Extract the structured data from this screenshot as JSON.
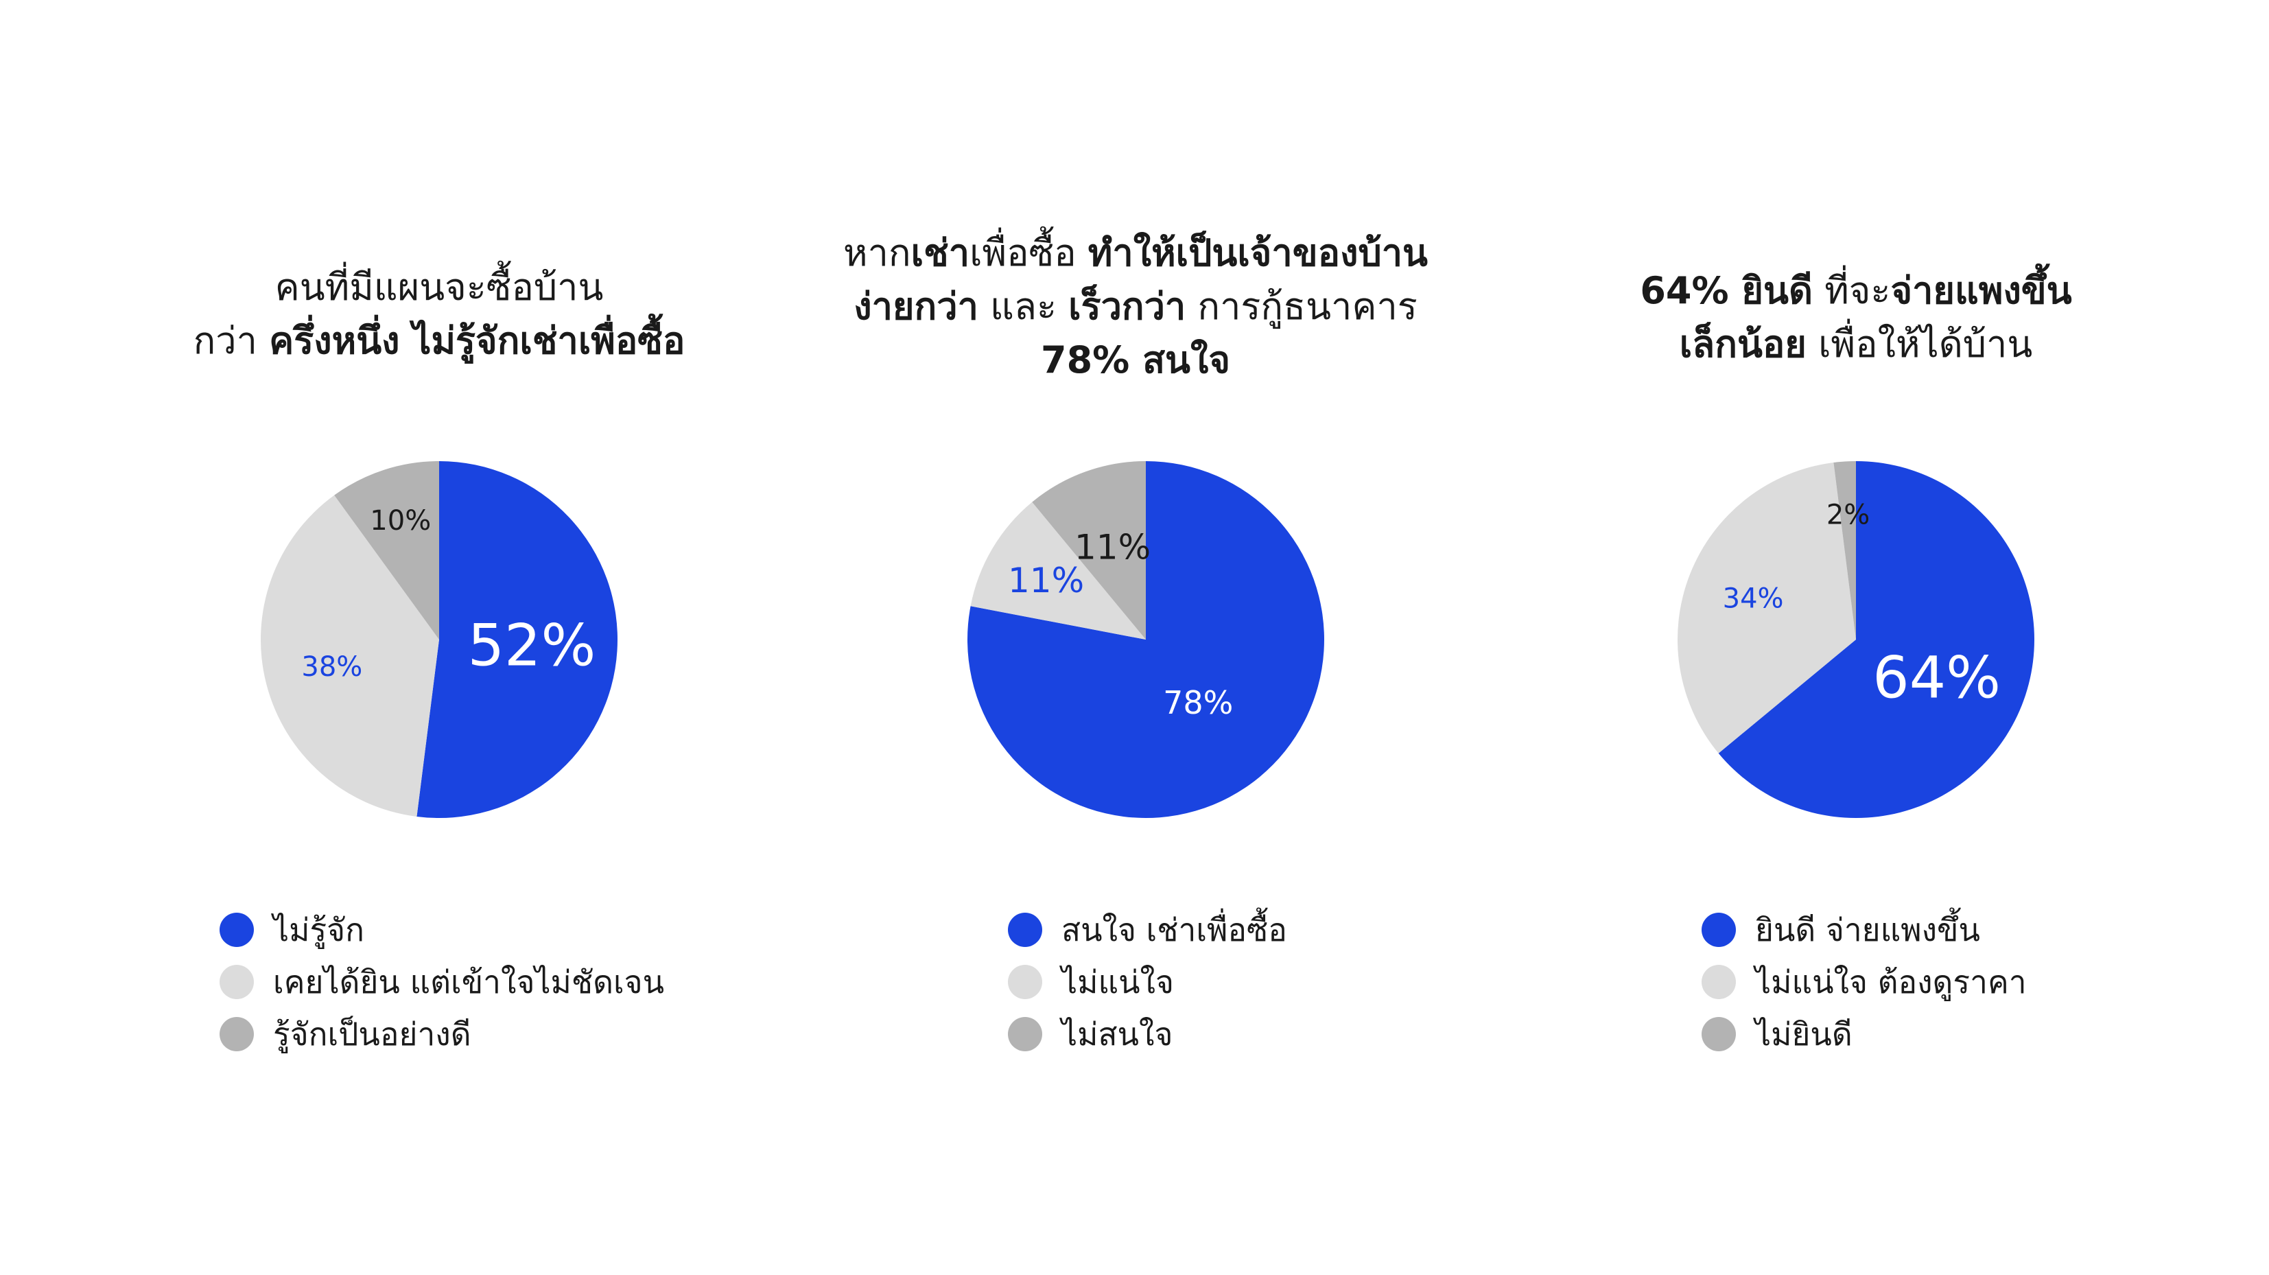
{
  "colors": {
    "blue": "#1a44e0",
    "light_gray": "#dcdcdc",
    "mid_gray": "#b3b3b3",
    "text": "#1a1a1a",
    "white": "#ffffff"
  },
  "chart_data": [
    {
      "type": "pie",
      "title_lines": [
        [
          {
            "text": "คนที่มีแผนจะซื้อบ้าน",
            "bold": false
          }
        ],
        [
          {
            "text": "กว่า ",
            "bold": false
          },
          {
            "text": "ครึ่งหนึ่ง ไม่รู้จักเช่าเพื่อซื้อ",
            "bold": true
          }
        ]
      ],
      "slices": [
        {
          "label": "ไม่รู้จัก",
          "value": 52,
          "data_label": "52%",
          "color": "#1a44e0",
          "label_color": "#ffffff"
        },
        {
          "label": "เคยได้ยิน แต่เข้าใจไม่ชัดเจน",
          "value": 38,
          "data_label": "38%",
          "color": "#dcdcdc",
          "label_color": "#1a44e0"
        },
        {
          "label": "รู้จักเป็นอย่างดี",
          "value": 10,
          "data_label": "10%",
          "color": "#b3b3b3",
          "label_color": "#1a1a1a"
        }
      ]
    },
    {
      "type": "pie",
      "title_lines": [
        [
          {
            "text": "หาก",
            "bold": false
          },
          {
            "text": "เช่า",
            "bold": true
          },
          {
            "text": "เพื่อซื้อ ",
            "bold": false
          },
          {
            "text": "ทำให้เป็นเจ้าของบ้าน",
            "bold": true
          }
        ],
        [
          {
            "text": "ง่ายกว่า",
            "bold": true
          },
          {
            "text": " และ ",
            "bold": false
          },
          {
            "text": "เร็วกว่า",
            "bold": true
          },
          {
            "text": " การกู้ธนาคาร",
            "bold": false
          }
        ],
        [
          {
            "text": "78% สนใจ",
            "bold": true
          }
        ]
      ],
      "slices": [
        {
          "label": "สนใจ เช่าเพื่อซื้อ",
          "value": 78,
          "data_label": "78%",
          "color": "#1a44e0",
          "label_color": "#ffffff"
        },
        {
          "label": "ไม่แน่ใจ",
          "value": 11,
          "data_label": "11%",
          "color": "#dcdcdc",
          "label_color": "#1a44e0"
        },
        {
          "label": "ไม่สนใจ",
          "value": 11,
          "data_label": "11%",
          "color": "#b3b3b3",
          "label_color": "#1a1a1a"
        }
      ]
    },
    {
      "type": "pie",
      "title_lines": [
        [
          {
            "text": "64% ยินดี",
            "bold": true
          },
          {
            "text": " ที่จะ",
            "bold": false
          },
          {
            "text": "จ่ายแพงขึ้น",
            "bold": true
          }
        ],
        [
          {
            "text": "เล็กน้อย",
            "bold": true
          },
          {
            "text": " เพื่อให้ได้บ้าน",
            "bold": false
          }
        ]
      ],
      "slices": [
        {
          "label": "ยินดี จ่ายแพงขึ้น",
          "value": 64,
          "data_label": "64%",
          "color": "#1a44e0",
          "label_color": "#ffffff"
        },
        {
          "label": "ไม่แน่ใจ ต้องดูราคา",
          "value": 34,
          "data_label": "34%",
          "color": "#dcdcdc",
          "label_color": "#1a44e0"
        },
        {
          "label": "ไม่ยินดี",
          "value": 2,
          "data_label": "2%",
          "color": "#b3b3b3",
          "label_color": "#1a1a1a"
        }
      ]
    }
  ]
}
